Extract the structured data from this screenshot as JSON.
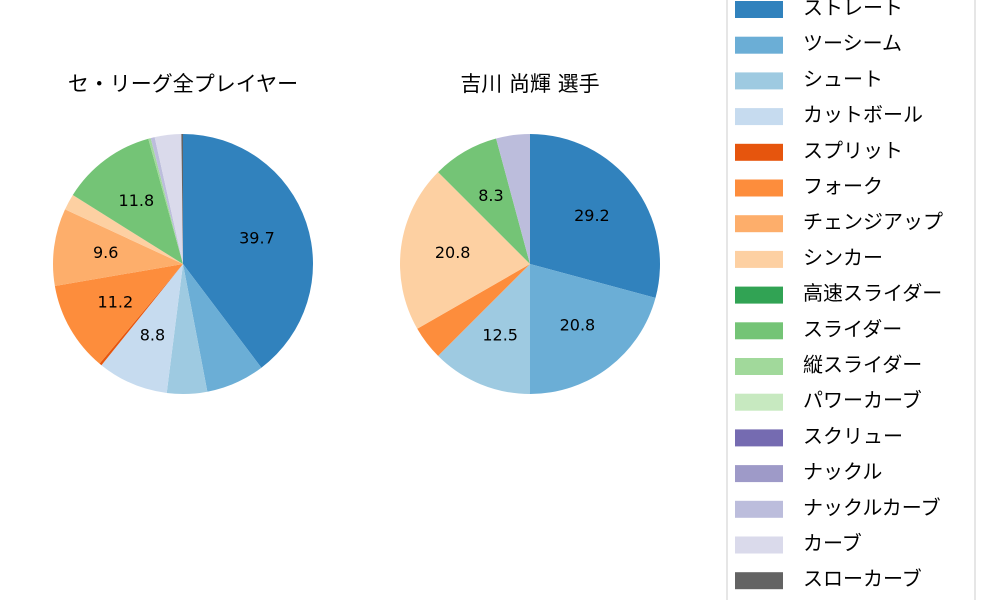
{
  "legend": {
    "entries": [
      {
        "name": "ストレート",
        "color": "#3182bd"
      },
      {
        "name": "ツーシーム",
        "color": "#6baed6"
      },
      {
        "name": "シュート",
        "color": "#9ecae1"
      },
      {
        "name": "カットボール",
        "color": "#c6dbef"
      },
      {
        "name": "スプリット",
        "color": "#e6550d"
      },
      {
        "name": "フォーク",
        "color": "#fd8d3c"
      },
      {
        "name": "チェンジアップ",
        "color": "#fdae6b"
      },
      {
        "name": "シンカー",
        "color": "#fdd0a2"
      },
      {
        "name": "高速スライダー",
        "color": "#31a354"
      },
      {
        "name": "スライダー",
        "color": "#74c476"
      },
      {
        "name": "縦スライダー",
        "color": "#a1d99b"
      },
      {
        "name": "パワーカーブ",
        "color": "#c7e9c0"
      },
      {
        "name": "スクリュー",
        "color": "#756bb1"
      },
      {
        "name": "ナックル",
        "color": "#9e9ac8"
      },
      {
        "name": "ナックルカーブ",
        "color": "#bcbddc"
      },
      {
        "name": "カーブ",
        "color": "#dadaeb"
      },
      {
        "name": "スローカーブ",
        "color": "#636363"
      }
    ]
  },
  "chart_data": [
    {
      "type": "pie",
      "title": "セ・リーグ全プレイヤー",
      "values": [
        39.7,
        7.3,
        5.0,
        8.8,
        0.3,
        11.2,
        9.6,
        2.0,
        0,
        11.8,
        0.3,
        0,
        0,
        0,
        0.5,
        3.3,
        0.2
      ],
      "value_labels": [
        "39.7",
        null,
        null,
        "8.8",
        null,
        "11.2",
        "9.6",
        null,
        null,
        "11.8",
        null,
        null,
        null,
        null,
        null,
        null,
        null
      ]
    },
    {
      "type": "pie",
      "title": "吉川 尚輝  選手",
      "values": [
        29.2,
        20.8,
        12.5,
        0,
        0,
        4.2,
        0,
        20.8,
        0,
        8.3,
        0,
        0,
        0,
        0,
        4.2,
        0,
        0
      ],
      "value_labels": [
        "29.2",
        "20.8",
        "12.5",
        null,
        null,
        null,
        null,
        "20.8",
        null,
        "8.3",
        null,
        null,
        null,
        null,
        null,
        null,
        null
      ]
    }
  ]
}
